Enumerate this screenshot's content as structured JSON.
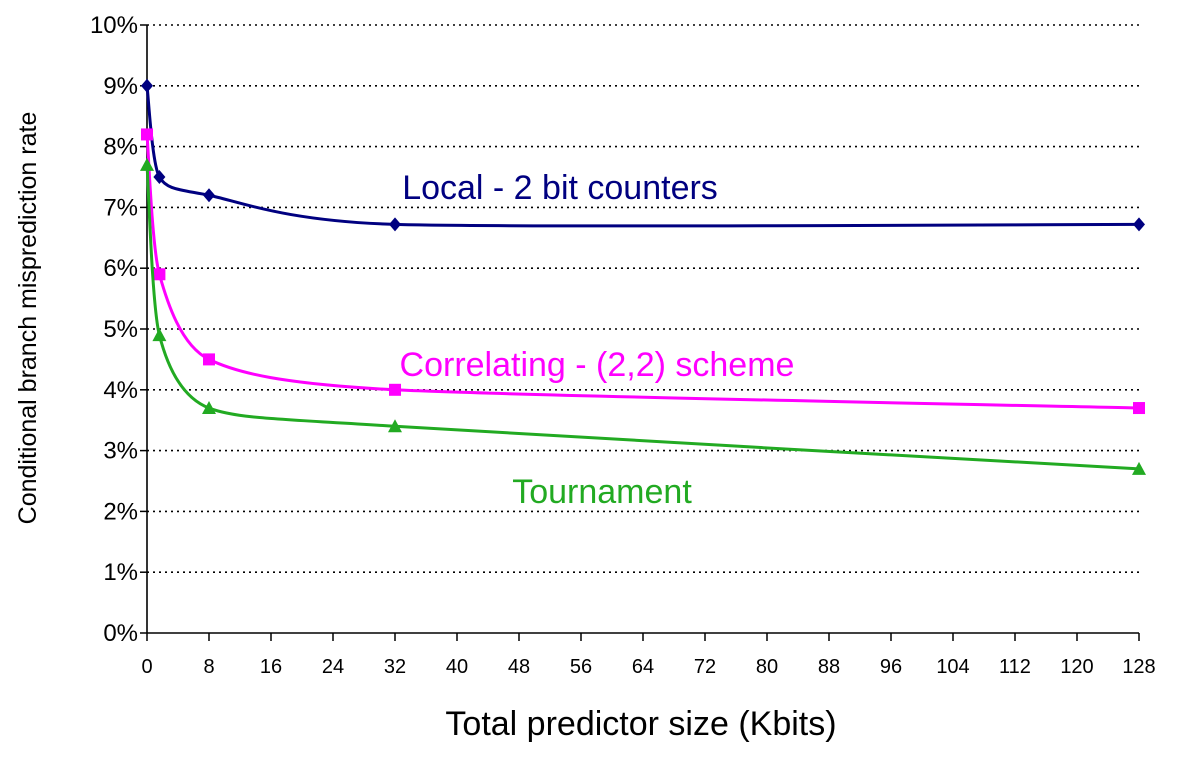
{
  "chart_data": {
    "type": "line",
    "title": "",
    "xlabel": "Total predictor size (Kbits)",
    "ylabel": "Conditional branch misprediction rate",
    "xlim": [
      0,
      128
    ],
    "ylim": [
      0,
      10
    ],
    "x_ticks": [
      "0",
      "8",
      "16",
      "24",
      "32",
      "40",
      "48",
      "56",
      "64",
      "72",
      "80",
      "88",
      "96",
      "104",
      "112",
      "120",
      "128"
    ],
    "y_ticks": [
      "0%",
      "1%",
      "2%",
      "3%",
      "4%",
      "5%",
      "6%",
      "7%",
      "8%",
      "9%",
      "10%"
    ],
    "grid": "horizontal dotted",
    "series": [
      {
        "name": "Local - 2 bit counters",
        "color": "#000080",
        "marker": "diamond",
        "x": [
          0,
          1.6,
          8,
          32,
          128
        ],
        "values": [
          9.0,
          7.5,
          7.2,
          6.72,
          6.72
        ]
      },
      {
        "name": "Correlating - (2,2) scheme",
        "color": "#ff00ff",
        "marker": "square",
        "x": [
          0,
          1.6,
          8,
          32,
          128
        ],
        "values": [
          8.2,
          5.9,
          4.5,
          4.0,
          3.7
        ]
      },
      {
        "name": "Tournament",
        "color": "#22aa22",
        "marker": "triangle",
        "x": [
          0,
          1.6,
          8,
          32,
          128
        ],
        "values": [
          7.7,
          4.9,
          3.7,
          3.4,
          2.7
        ]
      }
    ]
  }
}
